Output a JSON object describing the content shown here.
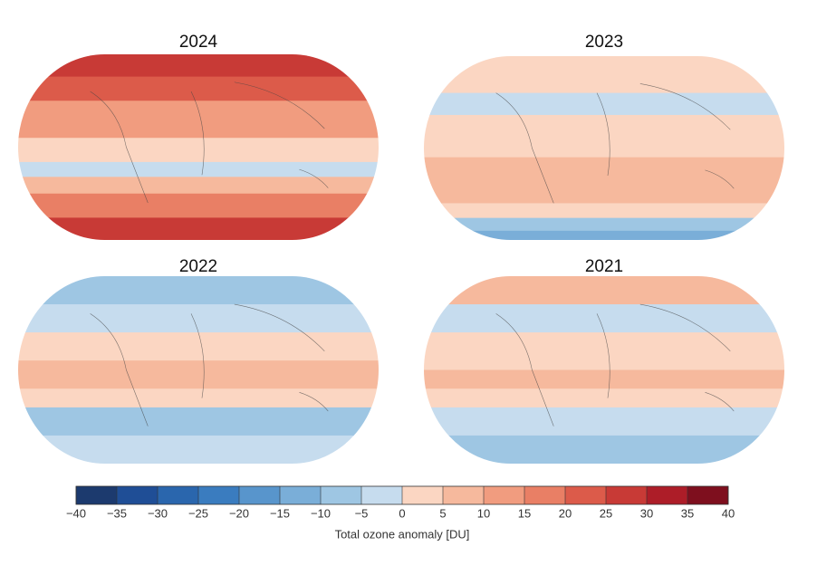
{
  "maps": [
    {
      "title": "2024"
    },
    {
      "title": "2023"
    },
    {
      "title": "2022"
    },
    {
      "title": "2021"
    }
  ],
  "colorbar": {
    "label": "Total ozone anomaly [DU]",
    "ticks": [
      {
        "value": -40,
        "label": "−40"
      },
      {
        "value": -35,
        "label": "−35"
      },
      {
        "value": -30,
        "label": "−30"
      },
      {
        "value": -25,
        "label": "−25"
      },
      {
        "value": -20,
        "label": "−20"
      },
      {
        "value": -15,
        "label": "−15"
      },
      {
        "value": -10,
        "label": "−10"
      },
      {
        "value": -5,
        "label": "−5"
      },
      0,
      5,
      10,
      15,
      20,
      25,
      30,
      35,
      40
    ],
    "colors": [
      "#1c3a6e",
      "#1f4e96",
      "#2a66ad",
      "#3a7cbf",
      "#5895cc",
      "#7aaed8",
      "#9ec6e3",
      "#c6dcee",
      "#fbd6c2",
      "#f6b99d",
      "#f19c7f",
      "#e97f65",
      "#dc5b4a",
      "#c83a36",
      "#ad1d28",
      "#7e0f1e"
    ]
  }
}
